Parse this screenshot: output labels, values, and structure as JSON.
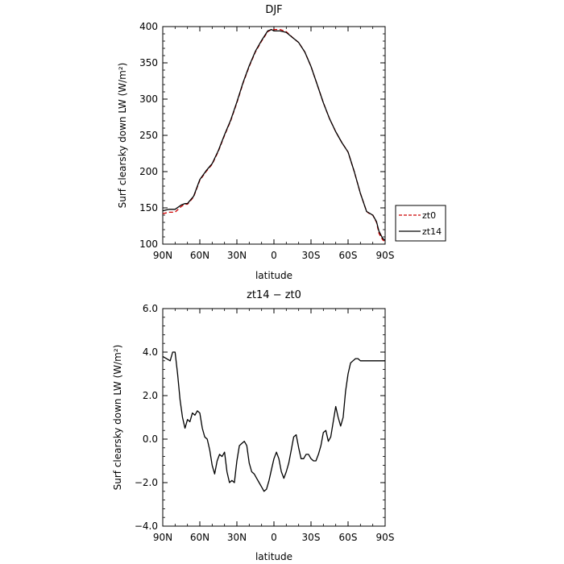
{
  "chart_data": [
    {
      "type": "line",
      "title": "DJF",
      "xlabel": "latitude",
      "ylabel": "Surf clearsky down LW (W/m²)",
      "ylim": [
        100,
        400
      ],
      "xlim": [
        90,
        -90
      ],
      "xtick_labels": [
        "90N",
        "60N",
        "30N",
        "0",
        "30S",
        "60S",
        "90S"
      ],
      "ytick_labels": [
        "100",
        "150",
        "200",
        "250",
        "300",
        "350",
        "400"
      ],
      "legend_placement": "right",
      "series": [
        {
          "name": "zt0",
          "color": "#cc0000",
          "dash": "dashed",
          "x": [
            90,
            85,
            80,
            75,
            72,
            70,
            65,
            60,
            55,
            50,
            45,
            40,
            35,
            30,
            25,
            20,
            15,
            10,
            5,
            2,
            0,
            -5,
            -10,
            -15,
            -20,
            -25,
            -30,
            -35,
            -40,
            -45,
            -50,
            -55,
            -60,
            -65,
            -70,
            -75,
            -78,
            -80,
            -83,
            -85,
            -88,
            -90
          ],
          "values": [
            142,
            144,
            144,
            152,
            155,
            155,
            165,
            188,
            200,
            210,
            228,
            250,
            270,
            295,
            322,
            345,
            365,
            380,
            393,
            396,
            396,
            396,
            393,
            385,
            378,
            365,
            345,
            320,
            295,
            273,
            255,
            240,
            227,
            200,
            170,
            145,
            141,
            140,
            130,
            115,
            106,
            103
          ]
        },
        {
          "name": "zt14",
          "color": "#000000",
          "dash": "solid",
          "x": [
            90,
            85,
            80,
            75,
            72,
            70,
            65,
            60,
            55,
            50,
            45,
            40,
            35,
            30,
            25,
            20,
            15,
            10,
            5,
            2,
            0,
            -5,
            -10,
            -15,
            -20,
            -25,
            -30,
            -35,
            -40,
            -45,
            -50,
            -55,
            -60,
            -65,
            -70,
            -75,
            -78,
            -80,
            -83,
            -85,
            -88,
            -90
          ],
          "values": [
            146,
            148,
            148,
            154,
            156,
            156,
            166,
            189,
            201,
            211,
            229,
            251,
            271,
            296,
            323,
            346,
            366,
            381,
            394,
            396,
            394,
            394,
            392,
            385,
            378,
            365,
            345,
            320,
            295,
            273,
            255,
            240,
            227,
            200,
            170,
            145,
            142,
            140,
            131,
            118,
            108,
            105
          ]
        }
      ]
    },
    {
      "type": "line",
      "title": "zt14 − zt0",
      "xlabel": "latitude",
      "ylabel": "Surf clearsky down LW (W/m²)",
      "ylim": [
        -4.0,
        6.0
      ],
      "xlim": [
        90,
        -90
      ],
      "xtick_labels": [
        "90N",
        "60N",
        "30N",
        "0",
        "30S",
        "60S",
        "90S"
      ],
      "ytick_labels": [
        "−4.0",
        "−2.0",
        "0.0",
        "2.0",
        "4.0",
        "6.0"
      ],
      "series": [
        {
          "color": "#000000",
          "dash": "solid",
          "x": [
            90,
            87,
            84,
            82,
            80,
            78,
            76,
            74,
            72,
            70,
            68,
            66,
            64,
            62,
            60,
            58,
            56,
            54,
            52,
            50,
            48,
            46,
            44,
            42,
            40,
            38,
            36,
            34,
            32,
            30,
            28,
            26,
            24,
            22,
            20,
            18,
            16,
            14,
            12,
            10,
            8,
            6,
            4,
            2,
            0,
            -2,
            -4,
            -6,
            -8,
            -10,
            -12,
            -14,
            -16,
            -18,
            -20,
            -22,
            -24,
            -26,
            -28,
            -30,
            -32,
            -34,
            -36,
            -38,
            -40,
            -42,
            -44,
            -46,
            -48,
            -50,
            -52,
            -54,
            -56,
            -58,
            -60,
            -62,
            -64,
            -66,
            -68,
            -70,
            -72,
            -74,
            -76,
            -78,
            -80,
            -82,
            -84,
            -86,
            -88,
            -90
          ],
          "values": [
            3.8,
            3.7,
            3.6,
            4.0,
            4.0,
            3.0,
            1.8,
            1.0,
            0.5,
            0.9,
            0.8,
            1.2,
            1.1,
            1.3,
            1.2,
            0.5,
            0.1,
            0.0,
            -0.5,
            -1.2,
            -1.6,
            -1.0,
            -0.7,
            -0.8,
            -0.6,
            -1.5,
            -2.0,
            -1.9,
            -2.0,
            -1.0,
            -0.3,
            -0.2,
            -0.1,
            -0.3,
            -1.1,
            -1.5,
            -1.6,
            -1.8,
            -2.0,
            -2.2,
            -2.4,
            -2.3,
            -1.9,
            -1.4,
            -0.9,
            -0.6,
            -0.9,
            -1.5,
            -1.8,
            -1.5,
            -1.1,
            -0.5,
            0.1,
            0.2,
            -0.4,
            -0.9,
            -0.9,
            -0.7,
            -0.7,
            -0.9,
            -1.0,
            -1.0,
            -0.7,
            -0.3,
            0.3,
            0.4,
            -0.1,
            0.1,
            0.8,
            1.5,
            1.0,
            0.6,
            1.0,
            2.2,
            3.0,
            3.5,
            3.6,
            3.7,
            3.7,
            3.6,
            3.6,
            3.6,
            3.6,
            3.6,
            3.6,
            3.6,
            3.6,
            3.6,
            3.6,
            3.6
          ]
        }
      ]
    }
  ]
}
